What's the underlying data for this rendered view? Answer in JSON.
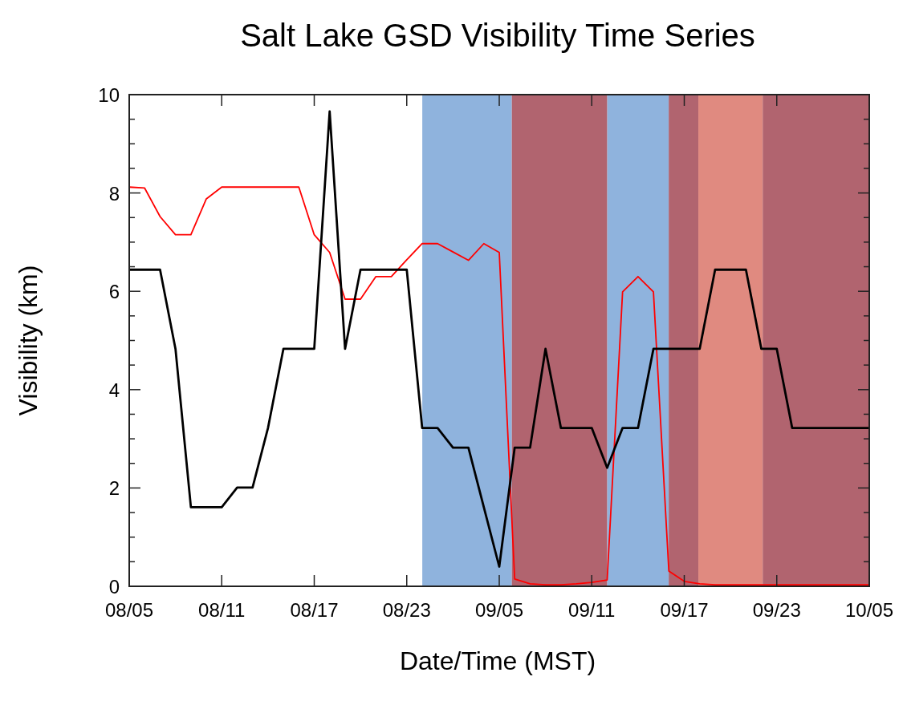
{
  "chart_data": {
    "type": "line",
    "title": "Salt Lake GSD Visibility Time Series",
    "xlabel": "Date/Time (MST)",
    "ylabel": "Visibility (km)",
    "categories": [
      "08/05",
      null,
      null,
      null,
      null,
      null,
      "08/11",
      null,
      null,
      null,
      null,
      null,
      "08/17",
      null,
      null,
      null,
      null,
      null,
      "08/23",
      null,
      null,
      null,
      null,
      null,
      "09/05",
      null,
      null,
      null,
      null,
      null,
      "09/11",
      null,
      null,
      null,
      null,
      null,
      "09/17",
      null,
      null,
      null,
      null,
      null,
      "09/23",
      null,
      null,
      null,
      null,
      null,
      "10/05"
    ],
    "ylim": [
      0,
      10
    ],
    "yticks": [
      0,
      {
        "value": 0.5,
        "label": null
      },
      {
        "value": 1,
        "label": null
      },
      {
        "value": 1.5,
        "label": null
      },
      2,
      {
        "value": 2.5,
        "label": null
      },
      {
        "value": 3,
        "label": null
      },
      {
        "value": 3.5,
        "label": null
      },
      4,
      {
        "value": 4.5,
        "label": null
      },
      {
        "value": 5,
        "label": null
      },
      {
        "value": 5.5,
        "label": null
      },
      6,
      {
        "value": 6.5,
        "label": null
      },
      {
        "value": 7,
        "label": null
      },
      {
        "value": 7.5,
        "label": null
      },
      8,
      {
        "value": 8.5,
        "label": null
      },
      {
        "value": 9,
        "label": null
      },
      {
        "value": 9.5,
        "label": null
      },
      10
    ],
    "series": [
      {
        "color": "#ff0000",
        "values": [
          8.12,
          8.1,
          7.52,
          7.15,
          7.15,
          7.88,
          8.12,
          8.12,
          8.12,
          8.12,
          8.12,
          8.12,
          7.15,
          6.79,
          5.84,
          5.84,
          6.3,
          6.3,
          6.64,
          6.97,
          6.97,
          6.8,
          6.63,
          6.97,
          6.79,
          0.15,
          0.05,
          0.03,
          0.03,
          0.05,
          0.08,
          0.13,
          5.99,
          6.3,
          5.99,
          0.31,
          0.1,
          0.05,
          0.03,
          0.03,
          0.03,
          0.03,
          0.03,
          0.03,
          0.03,
          0.03,
          0.03,
          0.03,
          0.03
        ]
      },
      {
        "color": "#000000",
        "values": [
          6.44,
          6.44,
          6.44,
          4.83,
          1.61,
          1.61,
          1.61,
          2.01,
          2.01,
          3.22,
          4.83,
          4.83,
          4.83,
          9.66,
          4.83,
          6.44,
          6.44,
          6.44,
          6.44,
          3.22,
          3.22,
          2.82,
          2.82,
          1.61,
          0.4,
          2.82,
          2.82,
          4.83,
          3.22,
          3.22,
          3.22,
          2.41,
          3.22,
          3.22,
          4.83,
          4.83,
          4.83,
          4.83,
          6.44,
          6.44,
          6.44,
          4.83,
          4.83,
          3.22,
          3.22,
          3.22,
          3.22,
          3.22,
          3.22
        ]
      }
    ],
    "grid": false
  }
}
